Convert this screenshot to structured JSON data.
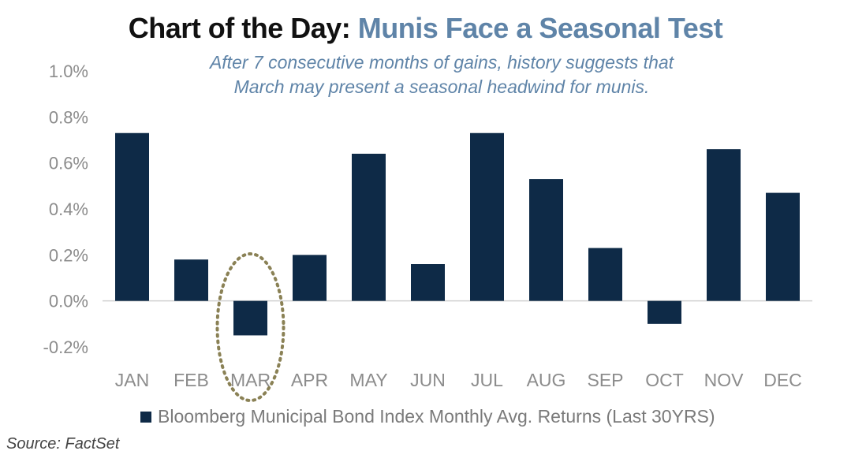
{
  "chart_data": {
    "type": "bar",
    "title_prefix": "Chart of the Day:",
    "title_main": "Munis Face a Seasonal Test",
    "subtitle_line1": "After 7 consecutive months of gains, history suggests that",
    "subtitle_line2": "March may present a seasonal headwind for munis.",
    "categories": [
      "JAN",
      "FEB",
      "MAR",
      "APR",
      "MAY",
      "JUN",
      "JUL",
      "AUG",
      "SEP",
      "OCT",
      "NOV",
      "DEC"
    ],
    "series": [
      {
        "name": "Bloomberg Municipal Bond Index Monthly Avg. Returns (Last 30YRS)",
        "values": [
          0.73,
          0.18,
          -0.15,
          0.2,
          0.64,
          0.16,
          0.73,
          0.53,
          0.23,
          -0.1,
          0.66,
          0.47
        ]
      }
    ],
    "ylim": [
      -0.2,
      1.0
    ],
    "yticks": [
      1.0,
      0.8,
      0.6,
      0.4,
      0.2,
      0.0,
      -0.2
    ],
    "ytick_labels": [
      "1.0%",
      "0.8%",
      "0.6%",
      "0.4%",
      "0.2%",
      "0.0%",
      "-0.2%"
    ],
    "highlighted_category": "MAR",
    "grid": false,
    "legend_position": "bottom",
    "colors": {
      "bar": "#0e2a47",
      "highlight": "#8a8155",
      "title_accent": "#5f84a8",
      "axis_text": "#8c8c8c"
    }
  },
  "source": "Source: FactSet"
}
